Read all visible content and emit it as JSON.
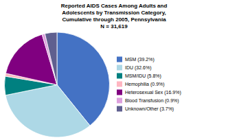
{
  "chart_data": {
    "type": "pie",
    "title": [
      "Reported AIDS Cases Among Adults and",
      "Adolescents by Transmission Category,",
      "Cumulative through 2005, Pennsylvania",
      "N = 31,619"
    ],
    "categories": [
      "MSM (39.2%)",
      "IDU (32.6%)",
      "MSM/IDU (5.8%)",
      "Hemophilia (0.9%)",
      "Heterosexual Sex (16.9%)",
      "Blood Transfusion (0.9%)",
      "Unknown/Other (3.7%)"
    ],
    "values": [
      39.2,
      32.6,
      5.8,
      0.9,
      16.9,
      0.9,
      3.7
    ],
    "colors": [
      "#4472C4",
      "#ADD8E6",
      "#008080",
      "#FFB6C1",
      "#800080",
      "#DDA0DD",
      "#5F5F8F"
    ],
    "legend": "right"
  }
}
